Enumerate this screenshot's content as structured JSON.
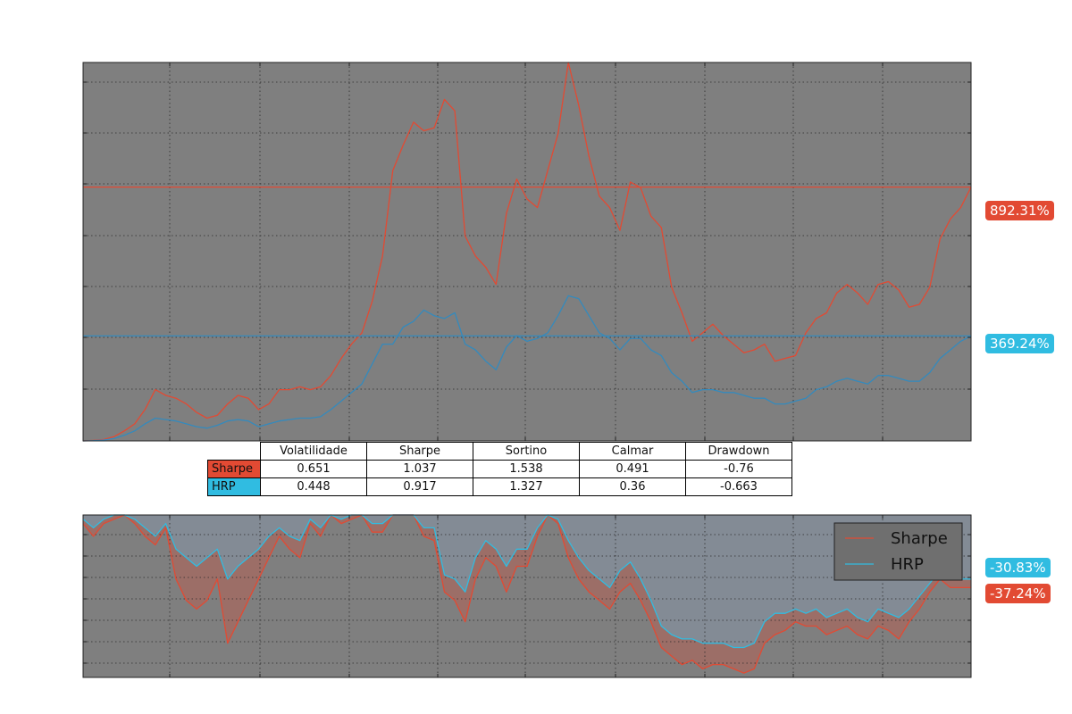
{
  "chart_data": [
    {
      "type": "line",
      "title": "",
      "xlabel": "",
      "ylabel": "",
      "grid": true,
      "ylim": [
        0,
        13.3
      ],
      "series": [
        {
          "name": "Sharpe",
          "color": "#e24a33",
          "last_label": "892.31%",
          "values": [
            0.0,
            0.02,
            0.05,
            0.15,
            0.35,
            0.6,
            1.1,
            1.8,
            1.6,
            1.5,
            1.3,
            1.0,
            0.8,
            0.9,
            1.3,
            1.6,
            1.5,
            1.1,
            1.3,
            1.8,
            1.8,
            1.9,
            1.8,
            1.9,
            2.3,
            2.9,
            3.4,
            3.8,
            4.9,
            6.5,
            9.5,
            10.4,
            11.2,
            10.9,
            11.0,
            12.0,
            11.6,
            7.2,
            6.5,
            6.1,
            5.5,
            8.0,
            9.2,
            8.5,
            8.2,
            9.5,
            10.8,
            13.3,
            11.8,
            10.0,
            8.6,
            8.2,
            7.4,
            9.1,
            8.9,
            7.9,
            7.5,
            5.4,
            4.5,
            3.5,
            3.8,
            4.1,
            3.7,
            3.4,
            3.1,
            3.2,
            3.4,
            2.8,
            2.9,
            3.0,
            3.8,
            4.3,
            4.5,
            5.2,
            5.5,
            5.2,
            4.8,
            5.5,
            5.6,
            5.3,
            4.7,
            4.8,
            5.4,
            7.1,
            7.8,
            8.2,
            8.92
          ]
        },
        {
          "name": "HRP",
          "color": "#348abd",
          "last_label": "369.24%",
          "values": [
            0.0,
            0.01,
            0.03,
            0.08,
            0.2,
            0.35,
            0.6,
            0.8,
            0.75,
            0.7,
            0.6,
            0.5,
            0.45,
            0.55,
            0.7,
            0.75,
            0.7,
            0.5,
            0.6,
            0.7,
            0.75,
            0.8,
            0.8,
            0.85,
            1.1,
            1.4,
            1.7,
            2.0,
            2.7,
            3.4,
            3.4,
            4.0,
            4.2,
            4.6,
            4.4,
            4.3,
            4.5,
            3.4,
            3.2,
            2.8,
            2.5,
            3.3,
            3.7,
            3.5,
            3.6,
            3.8,
            4.4,
            5.1,
            5.0,
            4.4,
            3.8,
            3.6,
            3.2,
            3.6,
            3.6,
            3.2,
            3.0,
            2.4,
            2.1,
            1.7,
            1.8,
            1.8,
            1.7,
            1.7,
            1.6,
            1.5,
            1.5,
            1.3,
            1.3,
            1.4,
            1.5,
            1.8,
            1.9,
            2.1,
            2.2,
            2.1,
            2.0,
            2.3,
            2.3,
            2.2,
            2.1,
            2.1,
            2.4,
            2.9,
            3.2,
            3.5,
            3.69
          ]
        }
      ]
    },
    {
      "type": "area",
      "title": "",
      "xlabel": "",
      "ylabel": "",
      "grid": true,
      "legend": "top-right",
      "ylim": [
        -0.38,
        0
      ],
      "series": [
        {
          "name": "Sharpe",
          "color": "#e24a33",
          "last_label": "-37.24%",
          "values": [
            -0.02,
            -0.05,
            -0.02,
            -0.01,
            -0.0,
            -0.02,
            -0.05,
            -0.07,
            -0.03,
            -0.15,
            -0.2,
            -0.22,
            -0.2,
            -0.15,
            -0.3,
            -0.25,
            -0.2,
            -0.15,
            -0.1,
            -0.05,
            -0.08,
            -0.1,
            -0.02,
            -0.05,
            -0.0,
            -0.02,
            -0.01,
            -0.0,
            -0.04,
            -0.04,
            -0.0,
            -0.0,
            -0.0,
            -0.05,
            -0.06,
            -0.18,
            -0.2,
            -0.25,
            -0.15,
            -0.1,
            -0.12,
            -0.18,
            -0.12,
            -0.12,
            -0.05,
            -0.0,
            -0.02,
            -0.1,
            -0.15,
            -0.18,
            -0.2,
            -0.22,
            -0.18,
            -0.16,
            -0.2,
            -0.25,
            -0.31,
            -0.33,
            -0.35,
            -0.34,
            -0.36,
            -0.35,
            -0.35,
            -0.36,
            -0.37,
            -0.36,
            -0.3,
            -0.28,
            -0.27,
            -0.25,
            -0.26,
            -0.26,
            -0.28,
            -0.27,
            -0.26,
            -0.28,
            -0.29,
            -0.26,
            -0.27,
            -0.29,
            -0.25,
            -0.22,
            -0.18,
            -0.15,
            -0.17,
            -0.17,
            -0.17
          ]
        },
        {
          "name": "HRP",
          "color": "#30bce1",
          "last_label": "-30.83%",
          "values": [
            -0.01,
            -0.03,
            -0.01,
            -0.0,
            -0.0,
            -0.01,
            -0.03,
            -0.05,
            -0.02,
            -0.08,
            -0.1,
            -0.12,
            -0.1,
            -0.08,
            -0.15,
            -0.12,
            -0.1,
            -0.08,
            -0.05,
            -0.03,
            -0.05,
            -0.06,
            -0.01,
            -0.03,
            -0.0,
            -0.01,
            -0.0,
            -0.0,
            -0.02,
            -0.02,
            -0.0,
            -0.0,
            -0.0,
            -0.03,
            -0.03,
            -0.14,
            -0.15,
            -0.18,
            -0.1,
            -0.06,
            -0.08,
            -0.12,
            -0.08,
            -0.08,
            -0.03,
            -0.0,
            -0.01,
            -0.06,
            -0.1,
            -0.13,
            -0.15,
            -0.17,
            -0.13,
            -0.11,
            -0.15,
            -0.2,
            -0.26,
            -0.28,
            -0.29,
            -0.29,
            -0.3,
            -0.3,
            -0.3,
            -0.31,
            -0.31,
            -0.3,
            -0.25,
            -0.23,
            -0.23,
            -0.22,
            -0.23,
            -0.22,
            -0.24,
            -0.23,
            -0.22,
            -0.24,
            -0.25,
            -0.22,
            -0.23,
            -0.24,
            -0.22,
            -0.19,
            -0.16,
            -0.13,
            -0.15,
            -0.15,
            -0.15
          ]
        }
      ]
    }
  ],
  "table": {
    "columns": [
      "Volatilidade",
      "Sharpe",
      "Sortino",
      "Calmar",
      "Drawdown"
    ],
    "rows": [
      {
        "label": "Sharpe",
        "color": "#e24a33",
        "cells": [
          "0.651",
          "1.037",
          "1.538",
          "0.491",
          "-0.76"
        ]
      },
      {
        "label": "HRP",
        "color": "#30bce1",
        "cells": [
          "0.448",
          "0.917",
          "1.327",
          "0.36",
          "-0.663"
        ]
      }
    ]
  },
  "colors": {
    "plot_bg": "#7f7f7f",
    "drawdown_bg": "#7a848f",
    "sharpe": "#e24a33",
    "hrp": "#30bce1"
  }
}
